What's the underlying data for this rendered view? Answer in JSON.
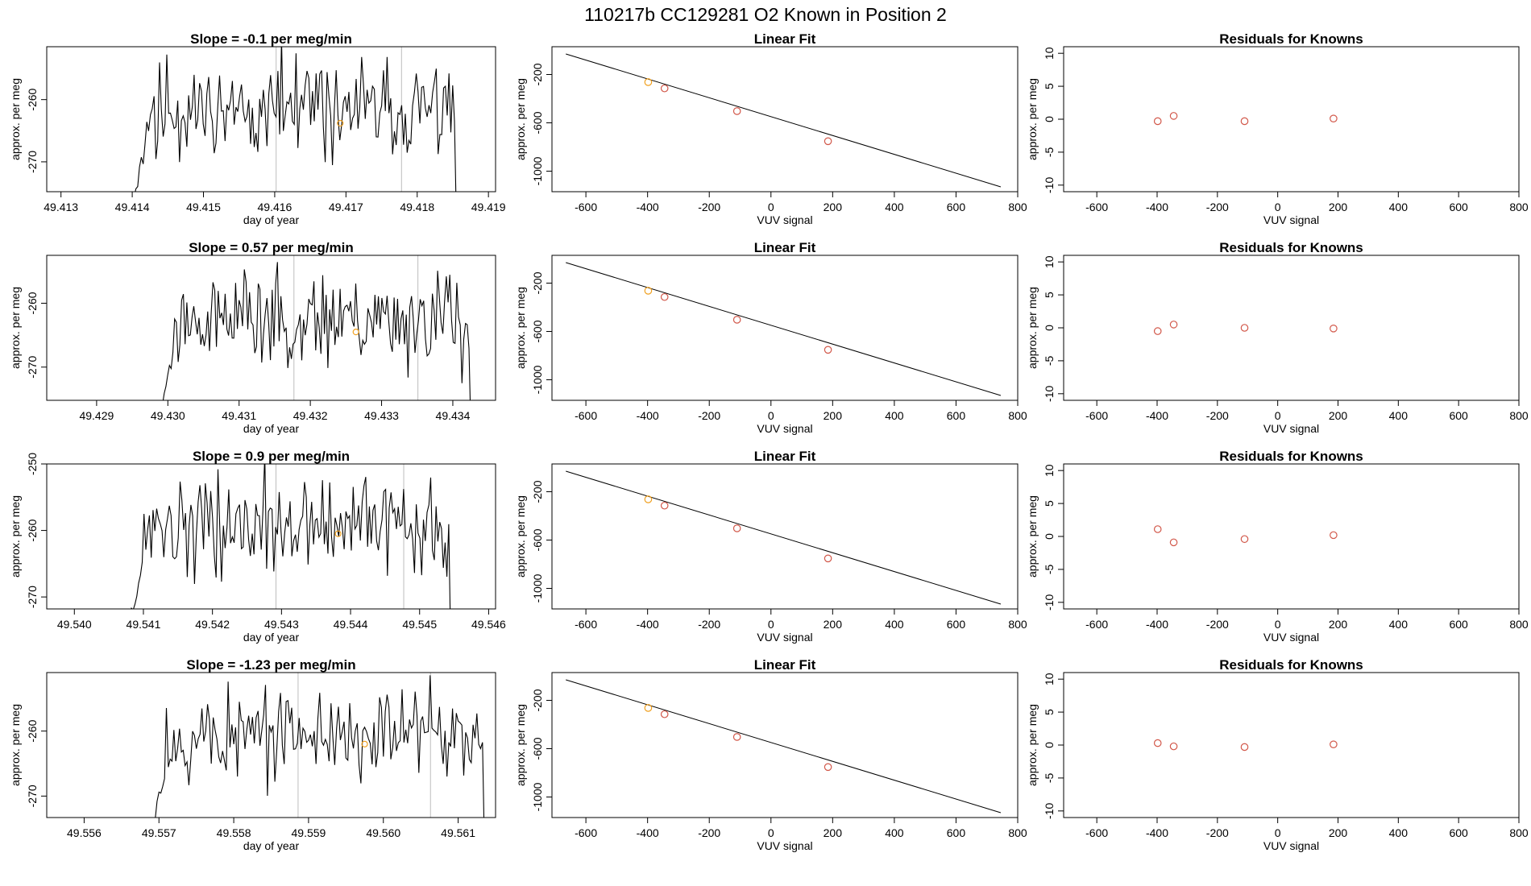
{
  "title": "110217b      CC129281    O2 Known in Position  2",
  "colors": {
    "line": "#000000",
    "vline": "#bdbdbd",
    "point": "#d2584a",
    "highlight": "#f0a020"
  },
  "chart_data": [
    {
      "type": "line",
      "row": 0,
      "title": "Slope =  -0.1  per meg/min",
      "xlabel": "day of year",
      "ylabel": "approx. per meg",
      "xlim": [
        49.4128,
        49.4191
      ],
      "ylim": [
        -274.8,
        -251.5
      ],
      "xticks": [
        49.413,
        49.414,
        49.415,
        49.416,
        49.417,
        49.418,
        49.419
      ],
      "xtick_labels": [
        "49.413",
        "49.414",
        "49.415",
        "49.416",
        "49.417",
        "49.418",
        "49.419"
      ],
      "yticks": [
        -260,
        -270
      ],
      "ytick_labels": [
        "-260",
        "-270"
      ],
      "series_start": 49.414,
      "series_end": 49.4186,
      "vlines": [
        49.41602,
        49.41778
      ],
      "highlight": [
        49.41692,
        -263.8
      ],
      "seed": 11
    },
    {
      "type": "line",
      "row": 1,
      "title": "Slope =  0.57  per meg/min",
      "xlabel": "day of year",
      "ylabel": "approx. per meg",
      "xlim": [
        49.4283,
        49.4346
      ],
      "ylim": [
        -275.2,
        -252.5
      ],
      "xticks": [
        49.429,
        49.43,
        49.431,
        49.432,
        49.433,
        49.434
      ],
      "xtick_labels": [
        "49.429",
        "49.430",
        "49.431",
        "49.432",
        "49.433",
        "49.434"
      ],
      "yticks": [
        -260,
        -270
      ],
      "ytick_labels": [
        "-260",
        "-270"
      ],
      "series_start": 49.4299,
      "series_end": 49.4343,
      "vlines": [
        49.43177,
        49.43351
      ],
      "highlight": [
        49.43264,
        -264.5
      ],
      "seed": 23
    },
    {
      "type": "line",
      "row": 2,
      "title": "Slope =  0.9  per meg/min",
      "xlabel": "day of year",
      "ylabel": "approx. per meg",
      "xlim": [
        49.5396,
        49.5461
      ],
      "ylim": [
        -271.8,
        -250.0
      ],
      "xticks": [
        49.54,
        49.541,
        49.542,
        49.543,
        49.544,
        49.545,
        49.546
      ],
      "xtick_labels": [
        "49.540",
        "49.541",
        "49.542",
        "49.543",
        "49.544",
        "49.545",
        "49.546"
      ],
      "yticks": [
        -250,
        -260,
        -270
      ],
      "ytick_labels": [
        "-250",
        "-260",
        "-270"
      ],
      "series_start": 49.5408,
      "series_end": 49.5455,
      "vlines": [
        49.54292,
        49.54477
      ],
      "highlight": [
        49.54382,
        -260.5
      ],
      "seed": 37
    },
    {
      "type": "line",
      "row": 3,
      "title": "Slope =  -1.23  per meg/min",
      "xlabel": "day of year",
      "ylabel": "approx. per meg",
      "xlim": [
        49.5555,
        49.5615
      ],
      "ylim": [
        -273.3,
        -251.0
      ],
      "xticks": [
        49.556,
        49.557,
        49.558,
        49.559,
        49.56,
        49.561
      ],
      "xtick_labels": [
        "49.556",
        "49.557",
        "49.558",
        "49.559",
        "49.560",
        "49.561"
      ],
      "yticks": [
        -260,
        -270
      ],
      "ytick_labels": [
        "-260",
        "-270"
      ],
      "series_start": 49.5569,
      "series_end": 49.5614,
      "vlines": [
        49.55886,
        49.56063
      ],
      "highlight": [
        49.55975,
        -262.0
      ],
      "seed": 53
    },
    {
      "type": "scatter",
      "row": 0,
      "title": "Linear Fit",
      "xlabel": "VUV signal",
      "ylabel": "approx. per meg",
      "xlim": [
        -710,
        800
      ],
      "ylim": [
        -1170,
        30
      ],
      "xticks": [
        -600,
        -400,
        -200,
        0,
        200,
        400,
        600,
        800
      ],
      "xtick_labels": [
        "-600",
        "-400",
        "-200",
        "0",
        "200",
        "400",
        "600",
        "800"
      ],
      "yticks": [
        -200,
        -600,
        -1000
      ],
      "ytick_labels": [
        "-200",
        "-600",
        "-1000"
      ],
      "x": [
        -398,
        -345,
        -110,
        185
      ],
      "y": [
        -263,
        -315,
        -503,
        -752
      ],
      "fit_line": [
        [
          -665,
          -30
        ],
        [
          745,
          -1130
        ]
      ],
      "highlight_index": 0
    },
    {
      "type": "scatter",
      "row": 1,
      "title": "Linear Fit",
      "xlabel": "VUV signal",
      "ylabel": "approx. per meg",
      "xlim": [
        -710,
        800
      ],
      "ylim": [
        -1170,
        30
      ],
      "xticks": [
        -600,
        -400,
        -200,
        0,
        200,
        400,
        600,
        800
      ],
      "xtick_labels": [
        "-600",
        "-400",
        "-200",
        "0",
        "200",
        "400",
        "600",
        "800"
      ],
      "yticks": [
        -200,
        -600,
        -1000
      ],
      "ytick_labels": [
        "-200",
        "-600",
        "-1000"
      ],
      "x": [
        -398,
        -345,
        -110,
        185
      ],
      "y": [
        -263,
        -315,
        -503,
        -752
      ],
      "fit_line": [
        [
          -665,
          -30
        ],
        [
          745,
          -1130
        ]
      ],
      "highlight_index": 0
    },
    {
      "type": "scatter",
      "row": 2,
      "title": "Linear Fit",
      "xlabel": "VUV signal",
      "ylabel": "approx. per meg",
      "xlim": [
        -710,
        800
      ],
      "ylim": [
        -1170,
        30
      ],
      "xticks": [
        -600,
        -400,
        -200,
        0,
        200,
        400,
        600,
        800
      ],
      "xtick_labels": [
        "-600",
        "-400",
        "-200",
        "0",
        "200",
        "400",
        "600",
        "800"
      ],
      "yticks": [
        -200,
        -600,
        -1000
      ],
      "ytick_labels": [
        "-200",
        "-600",
        "-1000"
      ],
      "x": [
        -398,
        -345,
        -110,
        185
      ],
      "y": [
        -263,
        -315,
        -503,
        -752
      ],
      "fit_line": [
        [
          -665,
          -30
        ],
        [
          745,
          -1130
        ]
      ],
      "highlight_index": 0
    },
    {
      "type": "scatter",
      "row": 3,
      "title": "Linear Fit",
      "xlabel": "VUV signal",
      "ylabel": "approx. per meg",
      "xlim": [
        -710,
        800
      ],
      "ylim": [
        -1170,
        30
      ],
      "xticks": [
        -600,
        -400,
        -200,
        0,
        200,
        400,
        600,
        800
      ],
      "xtick_labels": [
        "-600",
        "-400",
        "-200",
        "0",
        "200",
        "400",
        "600",
        "800"
      ],
      "yticks": [
        -200,
        -600,
        -1000
      ],
      "ytick_labels": [
        "-200",
        "-600",
        "-1000"
      ],
      "x": [
        -398,
        -345,
        -110,
        185
      ],
      "y": [
        -263,
        -315,
        -503,
        -752
      ],
      "fit_line": [
        [
          -665,
          -30
        ],
        [
          745,
          -1130
        ]
      ],
      "highlight_index": 0
    },
    {
      "type": "scatter",
      "row": 0,
      "title": "Residuals for Knowns",
      "xlabel": "VUV signal",
      "ylabel": "approx. per meg",
      "xlim": [
        -710,
        800
      ],
      "ylim": [
        -11,
        11
      ],
      "xticks": [
        -600,
        -400,
        -200,
        0,
        200,
        400,
        600,
        800
      ],
      "xtick_labels": [
        "-600",
        "-400",
        "-200",
        "0",
        "200",
        "400",
        "600",
        "800"
      ],
      "yticks": [
        10,
        5,
        0,
        -5,
        -10
      ],
      "ytick_labels": [
        "10",
        "5",
        "0",
        "-5",
        "-10"
      ],
      "x": [
        -398,
        -345,
        -110,
        185
      ],
      "y": [
        -0.3,
        0.5,
        -0.3,
        0.1
      ]
    },
    {
      "type": "scatter",
      "row": 1,
      "title": "Residuals for Knowns",
      "xlabel": "VUV signal",
      "ylabel": "approx. per meg",
      "xlim": [
        -710,
        800
      ],
      "ylim": [
        -11,
        11
      ],
      "xticks": [
        -600,
        -400,
        -200,
        0,
        200,
        400,
        600,
        800
      ],
      "xtick_labels": [
        "-600",
        "-400",
        "-200",
        "0",
        "200",
        "400",
        "600",
        "800"
      ],
      "yticks": [
        10,
        5,
        0,
        -5,
        -10
      ],
      "ytick_labels": [
        "10",
        "5",
        "0",
        "-5",
        "-10"
      ],
      "x": [
        -398,
        -345,
        -110,
        185
      ],
      "y": [
        -0.5,
        0.5,
        0.0,
        -0.1
      ]
    },
    {
      "type": "scatter",
      "row": 2,
      "title": "Residuals for Knowns",
      "xlabel": "VUV signal",
      "ylabel": "approx. per meg",
      "xlim": [
        -710,
        800
      ],
      "ylim": [
        -11,
        11
      ],
      "xticks": [
        -600,
        -400,
        -200,
        0,
        200,
        400,
        600,
        800
      ],
      "xtick_labels": [
        "-600",
        "-400",
        "-200",
        "0",
        "200",
        "400",
        "600",
        "800"
      ],
      "yticks": [
        10,
        5,
        0,
        -5,
        -10
      ],
      "ytick_labels": [
        "10",
        "5",
        "0",
        "-5",
        "-10"
      ],
      "x": [
        -398,
        -345,
        -110,
        185
      ],
      "y": [
        1.1,
        -0.9,
        -0.4,
        0.2
      ]
    },
    {
      "type": "scatter",
      "row": 3,
      "title": "Residuals for Knowns",
      "xlabel": "VUV signal",
      "ylabel": "approx. per meg",
      "xlim": [
        -710,
        800
      ],
      "ylim": [
        -11,
        11
      ],
      "xticks": [
        -600,
        -400,
        -200,
        0,
        200,
        400,
        600,
        800
      ],
      "xtick_labels": [
        "-600",
        "-400",
        "-200",
        "0",
        "200",
        "400",
        "600",
        "800"
      ],
      "yticks": [
        10,
        5,
        0,
        -5,
        -10
      ],
      "ytick_labels": [
        "10",
        "5",
        "0",
        "-5",
        "-10"
      ],
      "x": [
        -398,
        -345,
        -110,
        185
      ],
      "y": [
        0.3,
        -0.2,
        -0.3,
        0.1
      ]
    }
  ]
}
